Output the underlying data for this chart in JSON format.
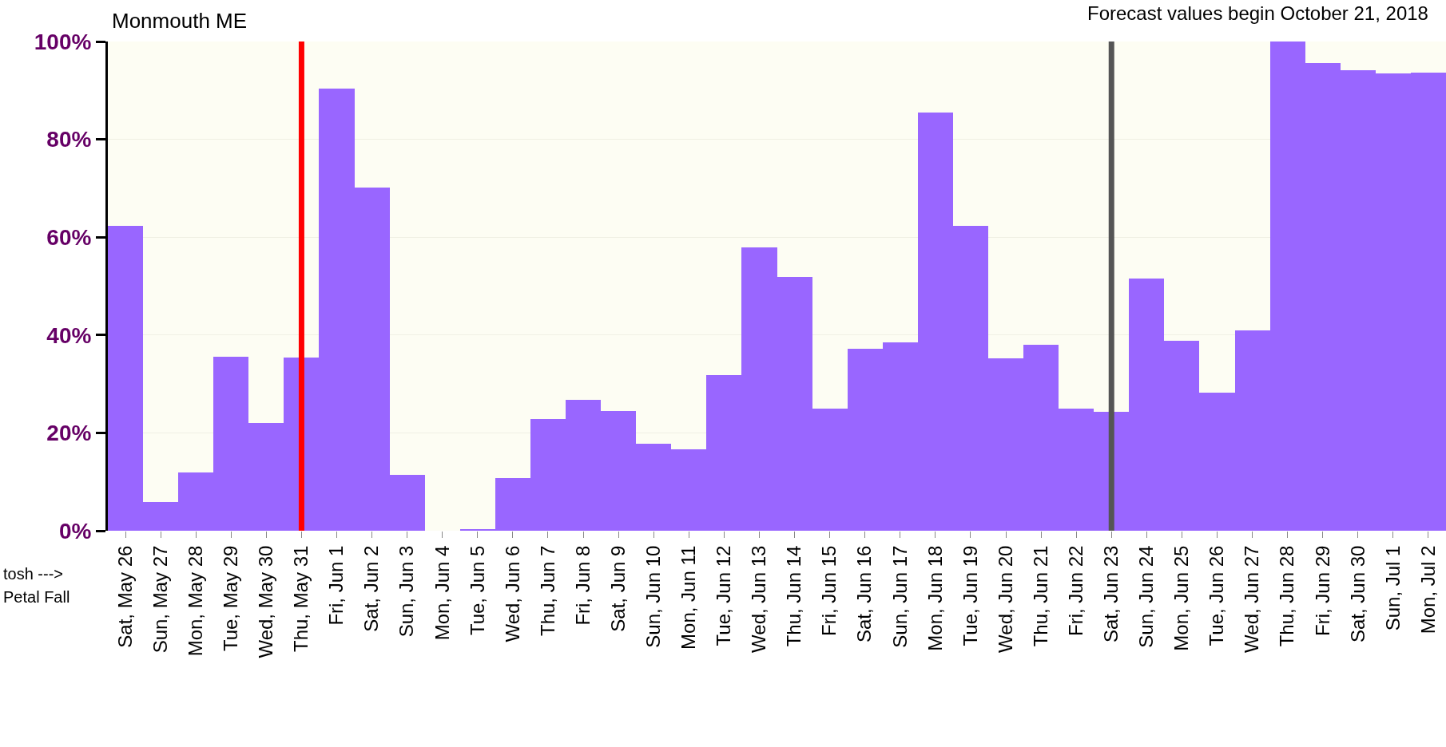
{
  "chart_data": {
    "type": "bar",
    "title": "Monmouth ME",
    "categories": [
      "Sat, May 26",
      "Sun, May 27",
      "Mon, May 28",
      "Tue, May 29",
      "Wed, May 30",
      "Thu, May 31",
      "Fri, Jun 1",
      "Sat, Jun 2",
      "Sun, Jun 3",
      "Mon, Jun 4",
      "Tue, Jun 5",
      "Wed, Jun 6",
      "Thu, Jun 7",
      "Fri, Jun 8",
      "Sat, Jun 9",
      "Sun, Jun 10",
      "Mon, Jun 11",
      "Tue, Jun 12",
      "Wed, Jun 13",
      "Thu, Jun 14",
      "Fri, Jun 15",
      "Sat, Jun 16",
      "Sun, Jun 17",
      "Mon, Jun 18",
      "Tue, Jun 19",
      "Wed, Jun 20",
      "Thu, Jun 21",
      "Fri, Jun 22",
      "Sat, Jun 23",
      "Sun, Jun 24",
      "Mon, Jun 25",
      "Tue, Jun 26",
      "Wed, Jun 27",
      "Thu, Jun 28",
      "Fri, Jun 29",
      "Sat, Jun 30",
      "Sun, Jul 1",
      "Mon, Jul 2"
    ],
    "values": [
      62.3,
      5.8,
      11.9,
      35.5,
      22,
      35.4,
      90.3,
      70.1,
      11.5,
      0,
      0.3,
      10.8,
      22.8,
      26.8,
      24.4,
      17.8,
      16.6,
      31.8,
      57.9,
      51.8,
      25,
      37.2,
      38.5,
      85.5,
      62.3,
      35.2,
      38,
      25,
      24.3,
      51.6,
      38.9,
      28.2,
      41,
      100,
      95.6,
      94.1,
      93.5,
      93.6
    ],
    "color": "#9966ff",
    "ylim": [
      0,
      100
    ],
    "yticks": [
      {
        "value": 0,
        "label": "0%"
      },
      {
        "value": 20,
        "label": "20%"
      },
      {
        "value": 40,
        "label": "40%"
      },
      {
        "value": 60,
        "label": "60%"
      },
      {
        "value": 80,
        "label": "80%"
      },
      {
        "value": 100,
        "label": "100%"
      }
    ],
    "grid": "y",
    "ref_lines": [
      {
        "axis": "x",
        "value": "Thu, May 31",
        "color": "#ff0000"
      },
      {
        "axis": "x",
        "value": "Sat, Jun 23",
        "color": "#555555"
      }
    ],
    "annotations": [
      "Forecast values begin October 21, 2018",
      "tosh --->",
      "Petal Fall"
    ]
  }
}
